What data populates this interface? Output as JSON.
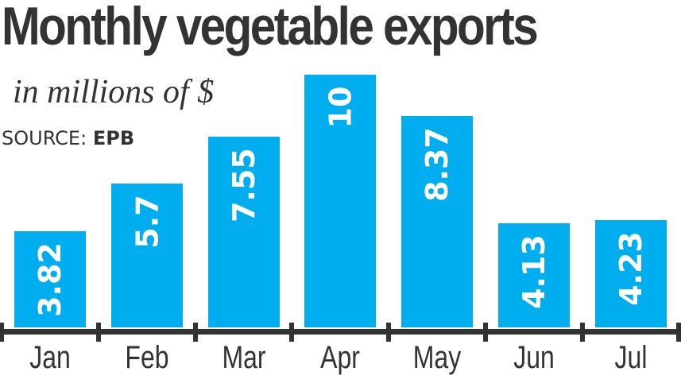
{
  "header": {
    "title": "Monthly vegetable exports",
    "subtitle": "in millions of $",
    "source_label": "SOURCE:",
    "source_value": "EPB"
  },
  "colors": {
    "bar": "#00aeef",
    "text": "#333333",
    "axis": "#333333",
    "bar_label": "#ffffff"
  },
  "chart_data": {
    "type": "bar",
    "title": "Monthly vegetable exports",
    "subtitle": "in millions of $",
    "source": "SOURCE: EPB",
    "xlabel": "",
    "ylabel": "in millions of $",
    "categories": [
      "Jan",
      "Feb",
      "Mar",
      "Apr",
      "May",
      "Jun",
      "Jul"
    ],
    "values": [
      3.82,
      5.7,
      7.55,
      10,
      8.37,
      4.13,
      4.23
    ],
    "value_labels": [
      "3.82",
      "5.7",
      "7.55",
      "10",
      "8.37",
      "4.13",
      "4.23"
    ],
    "ylim": [
      0,
      10
    ],
    "grid": false,
    "legend": null,
    "data_labels": "inside-top, rotated vertical"
  }
}
